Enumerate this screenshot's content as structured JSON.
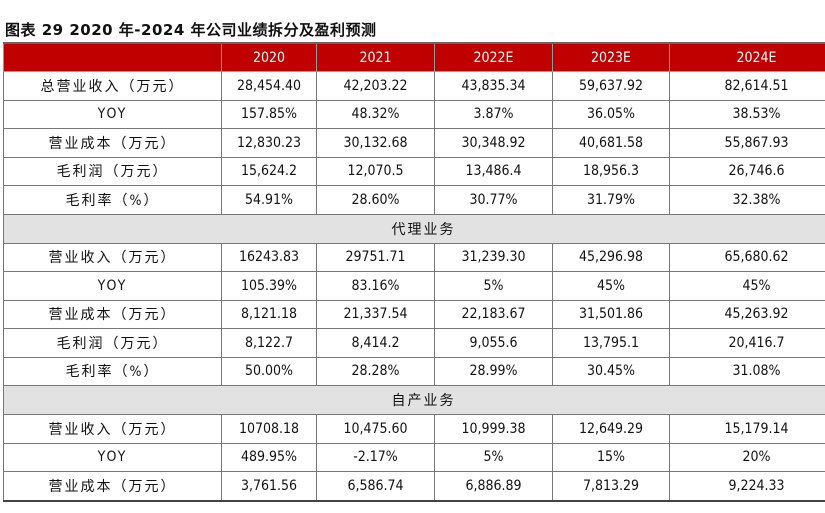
{
  "title": "图表 29 2020 年-2024 年公司业绩拆分及盈利预测",
  "colors": {
    "header_bg": "#c00000",
    "section_bg": "#e2e2e2"
  },
  "columns": [
    "2020",
    "2021",
    "2022E",
    "2023E",
    "2024E"
  ],
  "rows": [
    {
      "type": "data",
      "label": "总营业收入（万元）",
      "values": [
        "28,454.40",
        "42,203.22",
        "43,835.34",
        "59,637.92",
        "82,614.51"
      ]
    },
    {
      "type": "data",
      "label": "YOY",
      "values": [
        "157.85%",
        "48.32%",
        "3.87%",
        "36.05%",
        "38.53%"
      ]
    },
    {
      "type": "data",
      "label": "营业成本（万元）",
      "values": [
        "12,830.23",
        "30,132.68",
        "30,348.92",
        "40,681.58",
        "55,867.93"
      ]
    },
    {
      "type": "data",
      "label": "毛利润（万元）",
      "values": [
        "15,624.2",
        "12,070.5",
        "13,486.4",
        "18,956.3",
        "26,746.6"
      ]
    },
    {
      "type": "data",
      "label": "毛利率（%）",
      "values": [
        "54.91%",
        "28.60%",
        "30.77%",
        "31.79%",
        "32.38%"
      ]
    },
    {
      "type": "section",
      "label": "代理业务"
    },
    {
      "type": "data",
      "label": "营业收入（万元）",
      "values": [
        "16243.83",
        "29751.71",
        "31,239.30",
        "45,296.98",
        "65,680.62"
      ]
    },
    {
      "type": "data",
      "label": "YOY",
      "values": [
        "105.39%",
        "83.16%",
        "5%",
        "45%",
        "45%"
      ]
    },
    {
      "type": "data",
      "label": "营业成本（万元）",
      "values": [
        "8,121.18",
        "21,337.54",
        "22,183.67",
        "31,501.86",
        "45,263.92"
      ]
    },
    {
      "type": "data",
      "label": "毛利润（万元）",
      "values": [
        "8,122.7",
        "8,414.2",
        "9,055.6",
        "13,795.1",
        "20,416.7"
      ]
    },
    {
      "type": "data",
      "label": "毛利率（%）",
      "values": [
        "50.00%",
        "28.28%",
        "28.99%",
        "30.45%",
        "31.08%"
      ]
    },
    {
      "type": "section",
      "label": "自产业务"
    },
    {
      "type": "data",
      "label": "营业收入（万元）",
      "values": [
        "10708.18",
        "10,475.60",
        "10,999.38",
        "12,649.29",
        "15,179.14"
      ]
    },
    {
      "type": "data",
      "label": "YOY",
      "values": [
        "489.95%",
        "-2.17%",
        "5%",
        "15%",
        "20%"
      ]
    },
    {
      "type": "data",
      "label": "营业成本（万元）",
      "values": [
        "3,761.56",
        "6,586.74",
        "6,886.89",
        "7,813.29",
        "9,224.33"
      ]
    }
  ]
}
